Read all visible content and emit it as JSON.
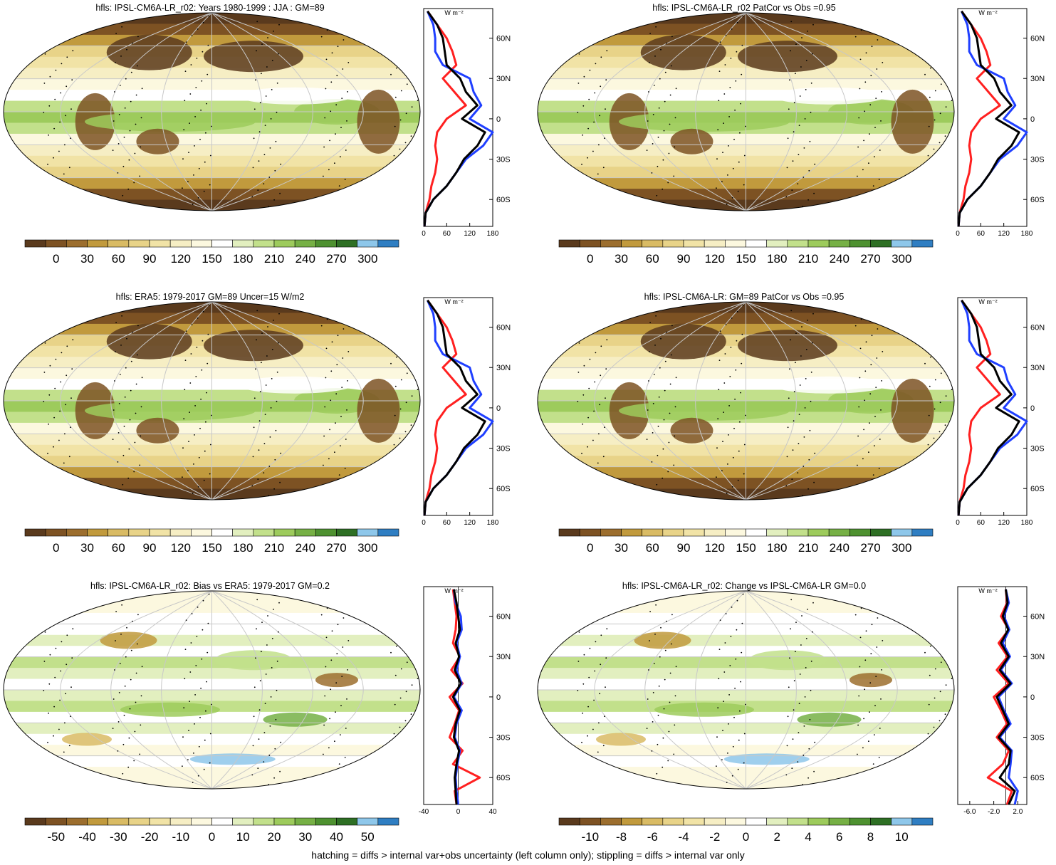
{
  "colors": {
    "bg": "#ffffff",
    "palette": [
      "#5a3a1d",
      "#7d5223",
      "#9c6e2e",
      "#c19a3d",
      "#d9bb64",
      "#e8d388",
      "#f1e3a6",
      "#f6eec4",
      "#fcf8df",
      "#ffffff",
      "#e2efbf",
      "#c2e08b",
      "#9dcb5c",
      "#76b045",
      "#4e9130",
      "#2e6f24",
      "#8ec7ea",
      "#2f7ec2"
    ],
    "obs_line": "#000000",
    "model_line": "#1f3fff",
    "other_line": "#ff2020"
  },
  "footer": "hatching = diffs > internal var+obs uncertainty (left column only); stippling = diffs > internal var only",
  "chart_data": [
    {
      "type": "heatmap",
      "title": "hfls: IPSL-CM6A-LR_r02: Years 1980-1999 : JJA : GM=89",
      "colorbar_labels": [
        "0",
        "30",
        "60",
        "90",
        "120",
        "150",
        "180",
        "210",
        "240",
        "270",
        "300"
      ],
      "profile": {
        "unit": "W m⁻²",
        "xticks": [
          "0",
          "60",
          "120",
          "180"
        ],
        "xlim": [
          0,
          180
        ],
        "yticks": [
          "60N",
          "30N",
          "0",
          "30S",
          "60S"
        ],
        "ytick_values": [
          60,
          30,
          0,
          -30,
          -60
        ],
        "ylim": [
          -80,
          82
        ],
        "lat": [
          80,
          70,
          60,
          50,
          40,
          30,
          20,
          10,
          0,
          -10,
          -20,
          -30,
          -40,
          -50,
          -60,
          -70,
          -80
        ],
        "series": [
          {
            "values": [
              10,
              35,
              50,
              55,
              60,
              95,
              110,
              140,
              100,
              160,
              140,
              105,
              85,
              60,
              25,
              5,
              2
            ]
          },
          {
            "values": [
              10,
              25,
              30,
              30,
              50,
              120,
              130,
              150,
              120,
              180,
              155,
              110,
              85,
              60,
              25,
              5,
              2
            ]
          },
          {
            "values": [
              10,
              35,
              60,
              75,
              85,
              50,
              80,
              110,
              60,
              35,
              30,
              35,
              30,
              20,
              15,
              5,
              2
            ]
          }
        ]
      }
    },
    {
      "type": "heatmap",
      "title": "hfls: IPSL-CM6A-LR_r02 PatCor vs Obs =0.95",
      "colorbar_labels": [
        "0",
        "30",
        "60",
        "90",
        "120",
        "150",
        "180",
        "210",
        "240",
        "270",
        "300"
      ],
      "profile": {
        "unit": "W m⁻²",
        "xticks": [
          "0",
          "60",
          "120",
          "180"
        ],
        "xlim": [
          0,
          180
        ],
        "yticks": [
          "60N",
          "30N",
          "0",
          "30S",
          "60S"
        ],
        "ytick_values": [
          60,
          30,
          0,
          -30,
          -60
        ],
        "ylim": [
          -80,
          82
        ],
        "lat": [
          80,
          70,
          60,
          50,
          40,
          30,
          20,
          10,
          0,
          -10,
          -20,
          -30,
          -40,
          -50,
          -60,
          -70,
          -80
        ],
        "series": [
          {
            "values": [
              10,
              35,
              50,
              55,
              60,
              95,
              110,
              140,
              100,
              160,
              140,
              105,
              85,
              60,
              25,
              5,
              2
            ]
          },
          {
            "values": [
              10,
              25,
              30,
              30,
              50,
              120,
              130,
              150,
              120,
              180,
              155,
              110,
              85,
              60,
              25,
              5,
              2
            ]
          },
          {
            "values": [
              10,
              35,
              60,
              75,
              85,
              50,
              80,
              110,
              60,
              35,
              30,
              35,
              30,
              20,
              15,
              5,
              2
            ]
          }
        ]
      }
    },
    {
      "type": "heatmap",
      "title": "hfls: ERA5: 1979-2017 GM=89 Uncer=15 W/m2",
      "colorbar_labels": [
        "0",
        "30",
        "60",
        "90",
        "120",
        "150",
        "180",
        "210",
        "240",
        "270",
        "300"
      ],
      "profile": {
        "unit": "W m⁻²",
        "xticks": [
          "0",
          "60",
          "120",
          "180"
        ],
        "xlim": [
          0,
          180
        ],
        "yticks": [
          "60N",
          "30N",
          "0",
          "30S",
          "60S"
        ],
        "ytick_values": [
          60,
          30,
          0,
          -30,
          -60
        ],
        "ylim": [
          -80,
          82
        ],
        "lat": [
          80,
          70,
          60,
          50,
          40,
          30,
          20,
          10,
          0,
          -10,
          -20,
          -30,
          -40,
          -50,
          -60,
          -70,
          -80
        ],
        "series": [
          {
            "values": [
              10,
              35,
              50,
              55,
              60,
              95,
              110,
              140,
              100,
              160,
              140,
              105,
              85,
              60,
              25,
              5,
              2
            ]
          },
          {
            "values": [
              10,
              25,
              30,
              30,
              50,
              120,
              130,
              150,
              120,
              180,
              155,
              110,
              85,
              60,
              25,
              5,
              2
            ]
          },
          {
            "values": [
              10,
              35,
              60,
              75,
              85,
              50,
              80,
              110,
              60,
              35,
              30,
              35,
              30,
              20,
              15,
              5,
              2
            ]
          }
        ]
      }
    },
    {
      "type": "heatmap",
      "title": "hfls: IPSL-CM6A-LR: GM=89 PatCor vs Obs =0.95",
      "colorbar_labels": [
        "0",
        "30",
        "60",
        "90",
        "120",
        "150",
        "180",
        "210",
        "240",
        "270",
        "300"
      ],
      "profile": {
        "unit": "W m⁻²",
        "xticks": [
          "0",
          "60",
          "120",
          "180"
        ],
        "xlim": [
          0,
          180
        ],
        "yticks": [
          "60N",
          "30N",
          "0",
          "30S",
          "60S"
        ],
        "ytick_values": [
          60,
          30,
          0,
          -30,
          -60
        ],
        "ylim": [
          -80,
          82
        ],
        "lat": [
          80,
          70,
          60,
          50,
          40,
          30,
          20,
          10,
          0,
          -10,
          -20,
          -30,
          -40,
          -50,
          -60,
          -70,
          -80
        ],
        "series": [
          {
            "values": [
              10,
              35,
              50,
              55,
              60,
              95,
              110,
              140,
              100,
              160,
              140,
              105,
              85,
              60,
              25,
              5,
              2
            ]
          },
          {
            "values": [
              10,
              25,
              30,
              30,
              50,
              120,
              130,
              150,
              120,
              180,
              155,
              110,
              85,
              60,
              25,
              5,
              2
            ]
          },
          {
            "values": [
              10,
              35,
              60,
              75,
              85,
              50,
              80,
              110,
              60,
              35,
              30,
              35,
              30,
              20,
              15,
              5,
              2
            ]
          }
        ]
      }
    },
    {
      "type": "heatmap",
      "title": "hfls: IPSL-CM6A-LR_r02: Bias vs ERA5: 1979-2017 GM=0.2",
      "colorbar_labels": [
        "-50",
        "-40",
        "-30",
        "-20",
        "-10",
        "0",
        "10",
        "20",
        "30",
        "40",
        "50"
      ],
      "profile": {
        "unit": "W m⁻²",
        "xticks": [
          "-40",
          "0",
          "40"
        ],
        "xlim": [
          -40,
          40
        ],
        "yticks": [
          "60N",
          "30N",
          "0",
          "30S",
          "60S"
        ],
        "ytick_values": [
          60,
          30,
          0,
          -30,
          -60
        ],
        "ylim": [
          -80,
          82
        ],
        "lat": [
          80,
          70,
          60,
          50,
          40,
          30,
          20,
          10,
          0,
          -10,
          -20,
          -30,
          -40,
          -50,
          -60,
          -70,
          -80
        ],
        "series": [
          {
            "values": [
              -5,
              -2,
              0,
              2,
              -3,
              1,
              -4,
              3,
              -6,
              2,
              -3,
              -5,
              1,
              -2,
              -4,
              -3,
              -2
            ]
          },
          {
            "values": [
              -5,
              -3,
              3,
              4,
              -2,
              2,
              -2,
              4,
              -5,
              4,
              -2,
              -4,
              2,
              -1,
              -3,
              -2,
              0
            ]
          },
          {
            "values": [
              -6,
              -4,
              -2,
              -3,
              -6,
              2,
              -8,
              5,
              -10,
              1,
              -4,
              -10,
              5,
              -6,
              25,
              -4,
              -2
            ]
          }
        ]
      }
    },
    {
      "type": "heatmap",
      "title": "hfls: IPSL-CM6A-LR_r02: Change vs IPSL-CM6A-LR GM=0.0",
      "colorbar_labels": [
        "-10",
        "-8",
        "-6",
        "-4",
        "-2",
        "0",
        "2",
        "4",
        "6",
        "8",
        "10"
      ],
      "profile": {
        "unit": "W m⁻²",
        "xticks": [
          "-6.0",
          "-2.0",
          "2.0"
        ],
        "xlim": [
          -8,
          3.5
        ],
        "yticks": [
          "60N",
          "30N",
          "0",
          "30S",
          "60S"
        ],
        "ytick_values": [
          60,
          30,
          0,
          -30,
          -60
        ],
        "ylim": [
          -80,
          82
        ],
        "lat": [
          80,
          70,
          60,
          50,
          40,
          30,
          20,
          10,
          0,
          -10,
          -20,
          -30,
          -40,
          -50,
          -60,
          -70,
          -80
        ],
        "series": [
          {
            "values": [
              0,
              0.3,
              -0.5,
              0.4,
              -0.8,
              0.5,
              -1.0,
              0.8,
              -1.5,
              -0.5,
              0.5,
              -1.2,
              0.8,
              0.5,
              -1.0,
              1.5,
              0.5
            ]
          },
          {
            "values": [
              0,
              0.5,
              -0.3,
              0.6,
              -0.5,
              0.7,
              -0.8,
              1.0,
              -1.2,
              -0.3,
              0.8,
              -1.0,
              1.0,
              0.8,
              0.5,
              2.0,
              1.5
            ]
          },
          {
            "values": [
              0,
              0.2,
              -0.8,
              0.5,
              -1.2,
              0.3,
              -1.5,
              0.5,
              -2.0,
              -0.8,
              0.2,
              -1.5,
              0.5,
              -0.5,
              -3.0,
              1.0,
              0.2
            ]
          }
        ]
      }
    }
  ]
}
